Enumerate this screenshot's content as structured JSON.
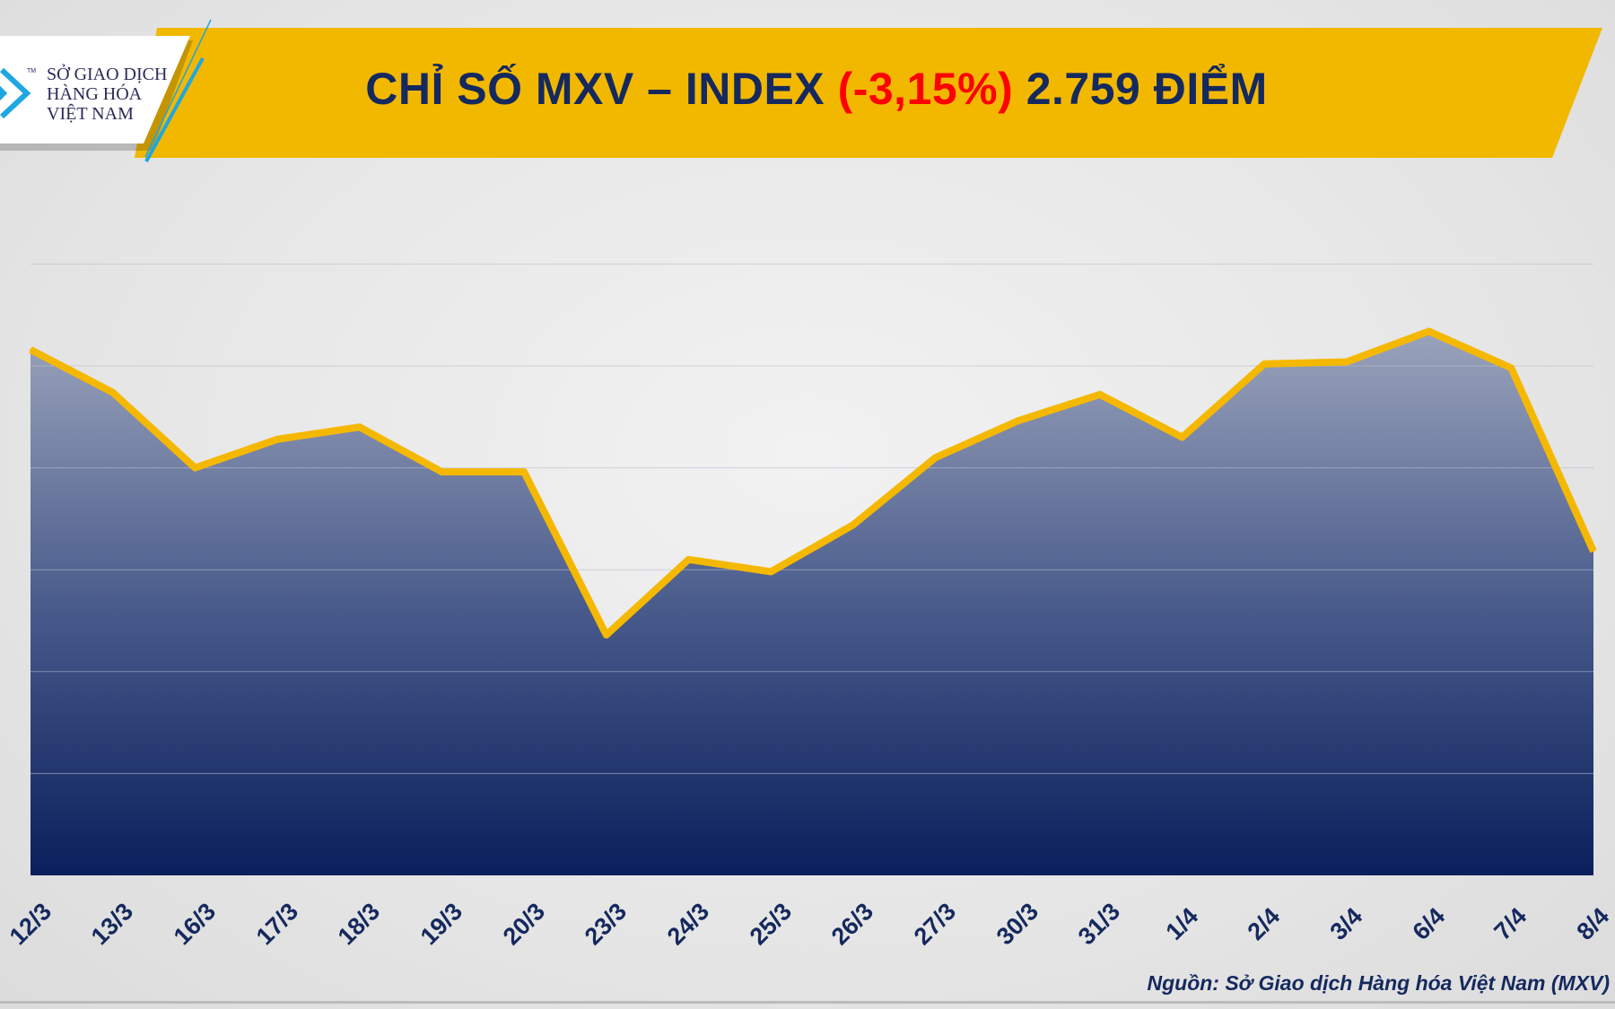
{
  "header": {
    "title_prefix": "CHỈ SỐ MXV – INDEX",
    "change": "(-3,15%)",
    "value_text": "2.759 ĐIỂM"
  },
  "logo": {
    "line1": "SỞ GIAO DỊCH",
    "line2": "HÀNG HÓA",
    "line3": "VIỆT NAM",
    "tm": "TM"
  },
  "source": "Nguồn: Sở Giao dịch Hàng hóa Việt Nam (MXV)",
  "colors": {
    "banner": "#f2b800",
    "title": "#15295e",
    "change": "#ff0000",
    "line": "#f5b800",
    "area_top": "#9aa3bb",
    "area_bottom": "#0a1f5c",
    "logo_accent": "#1ea7e1"
  },
  "chart_data": {
    "type": "area",
    "categories": [
      "12/3",
      "13/3",
      "16/3",
      "17/3",
      "18/3",
      "19/3",
      "20/3",
      "23/3",
      "24/3",
      "25/3",
      "26/3",
      "27/3",
      "30/3",
      "31/3",
      "1/4",
      "2/4",
      "3/4",
      "6/4",
      "7/4",
      "8/4"
    ],
    "values": [
      2858,
      2837,
      2800,
      2814,
      2820,
      2798,
      2798,
      2718,
      2755,
      2749,
      2772,
      2805,
      2823,
      2836,
      2815,
      2851,
      2852,
      2867,
      2849,
      2759
    ],
    "ylim": [
      2600,
      2950
    ],
    "grid": true,
    "y_tick_labels_shown": false,
    "legend": "none"
  }
}
